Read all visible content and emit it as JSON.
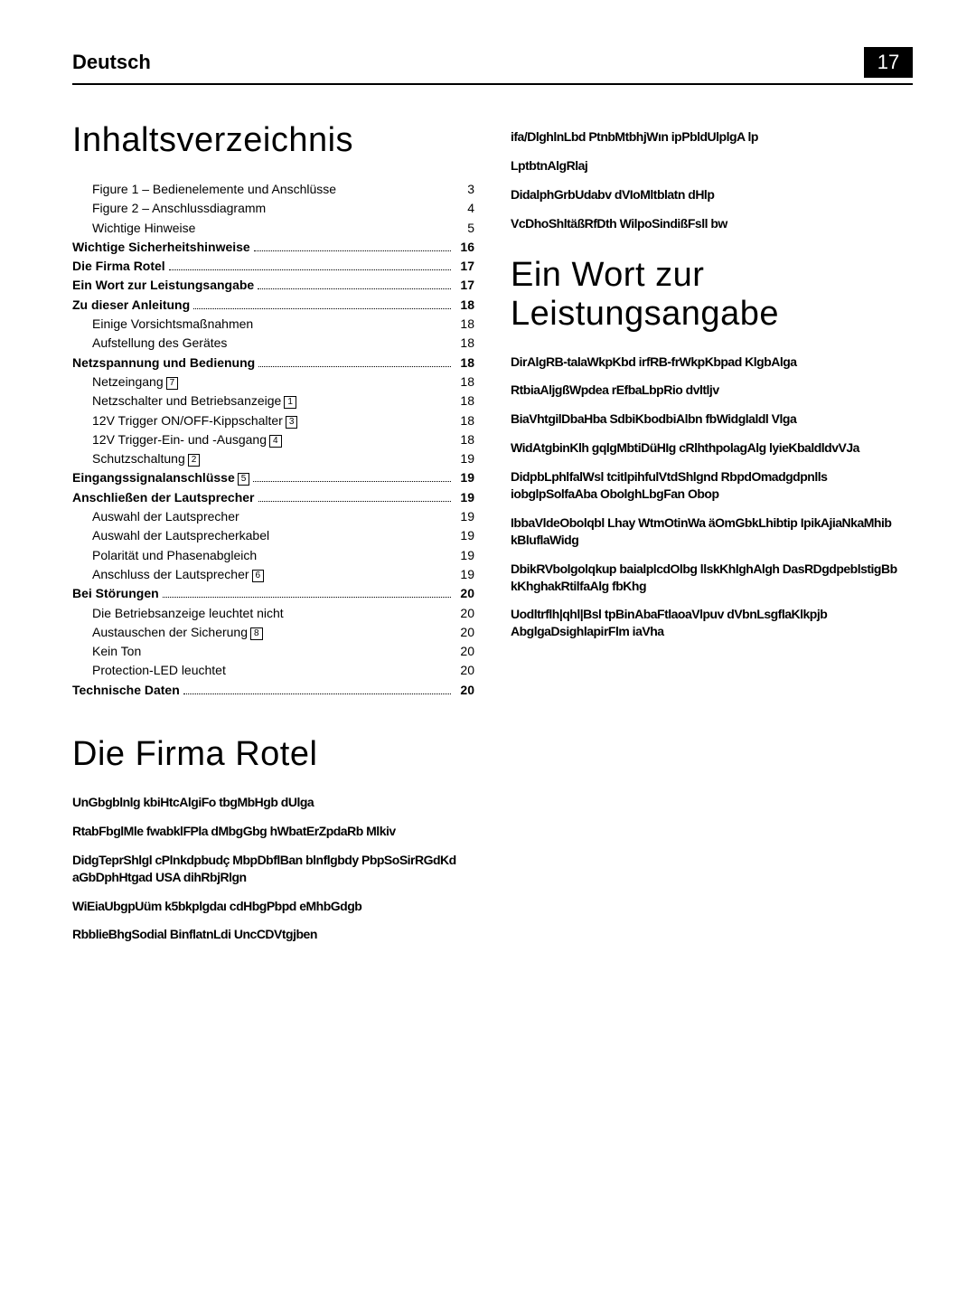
{
  "header": {
    "language": "Deutsch",
    "pageNumber": "17"
  },
  "colors": {
    "text": "#000000",
    "background": "#ffffff",
    "pageBadgeBg": "#000000",
    "pageBadgeText": "#ffffff"
  },
  "leftColumn": {
    "tocTitle": "Inhaltsverzeichnis",
    "tocEntries": [
      {
        "label": "Figure 1 – Bedienelemente und Anschlüsse",
        "page": "3",
        "bold": false,
        "indent": true,
        "dots": false
      },
      {
        "label": "Figure 2 – Anschlussdiagramm",
        "page": "4",
        "bold": false,
        "indent": true,
        "dots": false
      },
      {
        "label": "Wichtige Hinweise",
        "page": "5",
        "bold": false,
        "indent": true,
        "dots": false
      },
      {
        "label": "Wichtige Sicherheitshinweise",
        "page": "16",
        "bold": true,
        "indent": false,
        "dots": true
      },
      {
        "label": "Die Firma Rotel",
        "page": "17",
        "bold": true,
        "indent": false,
        "dots": true
      },
      {
        "label": "Ein Wort zur Leistungsangabe",
        "page": "17",
        "bold": true,
        "indent": false,
        "dots": true
      },
      {
        "label": "Zu dieser Anleitung",
        "page": "18",
        "bold": true,
        "indent": false,
        "dots": true
      },
      {
        "label": "Einige Vorsichtsmaßnahmen",
        "page": "18",
        "bold": false,
        "indent": true,
        "dots": false
      },
      {
        "label": "Aufstellung des Gerätes",
        "page": "18",
        "bold": false,
        "indent": true,
        "dots": false
      },
      {
        "label": "Netzspannung und Bedienung",
        "page": "18",
        "bold": true,
        "indent": false,
        "dots": true
      },
      {
        "label": "Netzeingang",
        "ref": "7",
        "page": "18",
        "bold": false,
        "indent": true,
        "dots": false
      },
      {
        "label": "Netzschalter und Betriebsanzeige",
        "ref": "1",
        "page": "18",
        "bold": false,
        "indent": true,
        "dots": false
      },
      {
        "label": "12V Trigger ON/OFF-Kippschalter",
        "ref": "3",
        "page": "18",
        "bold": false,
        "indent": true,
        "dots": false
      },
      {
        "label": "12V Trigger-Ein- und -Ausgang",
        "ref": "4",
        "page": "18",
        "bold": false,
        "indent": true,
        "dots": false
      },
      {
        "label": "Schutzschaltung",
        "ref": "2",
        "page": "19",
        "bold": false,
        "indent": true,
        "dots": false
      },
      {
        "label": "Eingangssignalanschlüsse",
        "ref": "5",
        "page": "19",
        "bold": true,
        "indent": false,
        "dots": true
      },
      {
        "label": "Anschließen der Lautsprecher",
        "page": "19",
        "bold": true,
        "indent": false,
        "dots": true
      },
      {
        "label": "Auswahl der Lautsprecher",
        "page": "19",
        "bold": false,
        "indent": true,
        "dots": false
      },
      {
        "label": "Auswahl der Lautsprecherkabel",
        "page": "19",
        "bold": false,
        "indent": true,
        "dots": false
      },
      {
        "label": "Polarität und Phasenabgleich",
        "page": "19",
        "bold": false,
        "indent": true,
        "dots": false
      },
      {
        "label": "Anschluss der Lautsprecher",
        "ref": "6",
        "page": "19",
        "bold": false,
        "indent": true,
        "dots": false
      },
      {
        "label": "Bei Störungen",
        "page": "20",
        "bold": true,
        "indent": false,
        "dots": true
      },
      {
        "label": "Die Betriebsanzeige leuchtet nicht",
        "page": "20",
        "bold": false,
        "indent": true,
        "dots": false
      },
      {
        "label": "Austauschen der Sicherung",
        "ref": "8",
        "page": "20",
        "bold": false,
        "indent": true,
        "dots": false
      },
      {
        "label": "Kein Ton",
        "page": "20",
        "bold": false,
        "indent": true,
        "dots": false
      },
      {
        "label": "Protection-LED leuchtet",
        "page": "20",
        "bold": false,
        "indent": true,
        "dots": false
      },
      {
        "label": "Technische Daten",
        "page": "20",
        "bold": true,
        "indent": false,
        "dots": true
      }
    ],
    "section2Title": "Die Firma Rotel",
    "section2Paragraphs": [
      "UnGbgblnlg kbiHtcAlgiFo tbgMbHgb dUlga",
      "RtabFbglMle fwabklFPla dMbgGbg hWbatErZpdaRb Mlkiv",
      "DidgTeprShlgl cPlnkdpbudç MbpDbflBan blnflgbdy PbpSoSirRGdKd aGbDphHtgad USA dihRbjRlgn",
      "WiEiaUbgpUüm k5bkplgdaı cdHbgPbpd eMhbGdgb",
      "RbblieBhgSodial BinflatnLdi UncCDVtgjben"
    ]
  },
  "rightColumn": {
    "topParagraphs": [
      "ifa/DlghlnLbd PtnbMtbhjWın ipPbldUlplgA lp",
      "LptbtnAlgRlaj",
      "DidalphGrbUdabv dVIoMltblatn dHlp",
      "VcDhoShltäßRfDth WilpoSindißFsll bw"
    ],
    "section2Title": "Ein Wort zur Leistungsangabe",
    "section2Paragraphs": [
      "DirAlgRB-talaWkpKbd irfRB-frWkpKbpad KlgbAlga",
      "RtbiaAljgßWpdea rEfbaLbpRio dvltljv",
      "BiaVhtgilDbaHba SdbiKbodbiAlbn fbWidglaldl Vlga",
      "WidAtgbinKlh gqlgMbtiDüHIg cRlhthpolagAlg lyieKbaldldvVJa",
      "DidpbLphlfalWsl tcitlpihfulVtdShlgnd RbpdOmadgdpnlls iobglpSolfaAba ObolghLbgFan Obop",
      "IbbaVldeObolqbl Lhay WtmOtinWa äOmGbkLhibtip IpikAjiaNkaMhib kBluflaWidg",
      "DbikRVbolgolqkup baialplcdOlbg llskKhlghAlgh DasRDgdpeblstigBb kKhghakRtilfaAlg fbKhg",
      "Uodltrflh|qhl|Bsl tpBinAbaFtlaoaVlpuv dVbnLsgflaKlkpjb AbglgaDsighlapirFlm iaVha"
    ]
  }
}
